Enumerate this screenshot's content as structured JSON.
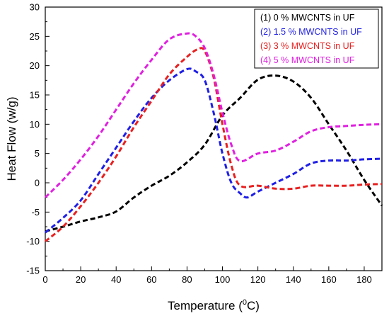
{
  "chart_data": {
    "type": "line",
    "title": "",
    "xlabel": {
      "prefix": "Temperature (",
      "sup": "0",
      "suffix": "C)"
    },
    "ylabel": "Heat Flow (w/g)",
    "xlim": [
      0,
      190
    ],
    "ylim": [
      -15,
      30
    ],
    "xticks": [
      0,
      20,
      40,
      60,
      80,
      100,
      120,
      140,
      160,
      180
    ],
    "yticks": [
      -15,
      -10,
      -5,
      0,
      5,
      10,
      15,
      20,
      25,
      30
    ],
    "legend_position": "top-right",
    "series": [
      {
        "name": "(1) 0 % MWCNTS in UF",
        "color": "#000000",
        "points": [
          [
            0,
            -8.3
          ],
          [
            10,
            -7.5
          ],
          [
            20,
            -6.6
          ],
          [
            30,
            -5.9
          ],
          [
            40,
            -4.9
          ],
          [
            50,
            -2.5
          ],
          [
            60,
            -0.5
          ],
          [
            70,
            1.2
          ],
          [
            80,
            3.5
          ],
          [
            90,
            6.5
          ],
          [
            100,
            11.5
          ],
          [
            110,
            14.5
          ],
          [
            120,
            17.6
          ],
          [
            130,
            18.3
          ],
          [
            140,
            17.3
          ],
          [
            150,
            14.5
          ],
          [
            160,
            10.0
          ],
          [
            170,
            5.5
          ],
          [
            180,
            0.5
          ],
          [
            190,
            -3.9
          ]
        ]
      },
      {
        "name": "(2) 1.5 % MWCNTS in UF",
        "color": "#1f1fe6",
        "points": [
          [
            0,
            -8.5
          ],
          [
            10,
            -6.0
          ],
          [
            20,
            -3.0
          ],
          [
            30,
            1.5
          ],
          [
            40,
            6.0
          ],
          [
            50,
            10.5
          ],
          [
            60,
            14.5
          ],
          [
            70,
            17.5
          ],
          [
            80,
            19.4
          ],
          [
            85,
            19.0
          ],
          [
            90,
            17.5
          ],
          [
            95,
            12.0
          ],
          [
            100,
            5.0
          ],
          [
            105,
            0.0
          ],
          [
            110,
            -1.8
          ],
          [
            114,
            -2.5
          ],
          [
            120,
            -1.5
          ],
          [
            130,
            0.0
          ],
          [
            140,
            1.5
          ],
          [
            150,
            3.3
          ],
          [
            160,
            3.8
          ],
          [
            170,
            3.8
          ],
          [
            180,
            4.0
          ],
          [
            190,
            4.1
          ]
        ]
      },
      {
        "name": "(3) 3 % MWCNTS in UF",
        "color": "#e82020",
        "points": [
          [
            0,
            -10.0
          ],
          [
            10,
            -7.5
          ],
          [
            20,
            -4.0
          ],
          [
            30,
            0.0
          ],
          [
            40,
            4.5
          ],
          [
            50,
            9.5
          ],
          [
            60,
            14.0
          ],
          [
            70,
            18.5
          ],
          [
            80,
            21.5
          ],
          [
            86,
            22.8
          ],
          [
            90,
            22.5
          ],
          [
            95,
            18.0
          ],
          [
            100,
            10.0
          ],
          [
            105,
            3.0
          ],
          [
            110,
            -0.5
          ],
          [
            120,
            -0.5
          ],
          [
            130,
            -1.0
          ],
          [
            140,
            -1.0
          ],
          [
            150,
            -0.5
          ],
          [
            160,
            -0.5
          ],
          [
            170,
            -0.5
          ],
          [
            180,
            -0.3
          ],
          [
            190,
            -0.2
          ]
        ]
      },
      {
        "name": "(4) 5 % MWCNTS in UF",
        "color": "#e020e0",
        "points": [
          [
            0,
            -2.5
          ],
          [
            10,
            0.5
          ],
          [
            20,
            4.0
          ],
          [
            30,
            8.0
          ],
          [
            40,
            12.5
          ],
          [
            50,
            17.0
          ],
          [
            60,
            21.0
          ],
          [
            70,
            24.5
          ],
          [
            80,
            25.5
          ],
          [
            85,
            25.0
          ],
          [
            90,
            23.0
          ],
          [
            95,
            18.5
          ],
          [
            100,
            12.0
          ],
          [
            105,
            6.5
          ],
          [
            110,
            3.7
          ],
          [
            120,
            5.0
          ],
          [
            130,
            5.5
          ],
          [
            140,
            7.0
          ],
          [
            150,
            8.8
          ],
          [
            160,
            9.5
          ],
          [
            170,
            9.7
          ],
          [
            180,
            9.9
          ],
          [
            190,
            10.0
          ]
        ]
      }
    ]
  }
}
